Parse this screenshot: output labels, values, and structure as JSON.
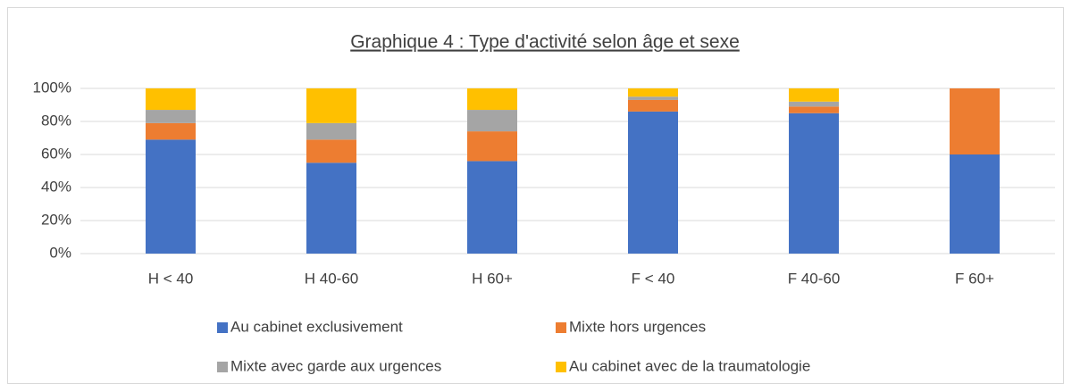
{
  "chart_data": {
    "type": "stacked_bar",
    "title": "Graphique 4 : Type d'activité selon âge et sexe",
    "categories": [
      "H < 40",
      "H 40-60",
      "H 60+",
      "F < 40",
      "F 40-60",
      "F 60+"
    ],
    "series": [
      {
        "name": "Au cabinet exclusivement",
        "color": "#4472c4",
        "values": [
          69,
          55,
          56,
          86,
          85,
          60
        ]
      },
      {
        "name": "Mixte hors urgences",
        "color": "#ed7d31",
        "values": [
          10,
          14,
          18,
          7,
          4,
          40
        ]
      },
      {
        "name": "Mixte avec garde aux urgences",
        "color": "#a5a5a5",
        "values": [
          8,
          10,
          13,
          2,
          3,
          0
        ]
      },
      {
        "name": "Au cabinet avec de la traumatologie",
        "color": "#ffc000",
        "values": [
          13,
          21,
          13,
          5,
          8,
          0
        ]
      }
    ],
    "ylim": [
      0,
      100
    ],
    "yticks": [
      {
        "value": 0,
        "label": "0%"
      },
      {
        "value": 20,
        "label": "20%"
      },
      {
        "value": 40,
        "label": "40%"
      },
      {
        "value": 60,
        "label": "60%"
      },
      {
        "value": 80,
        "label": "80%"
      },
      {
        "value": 100,
        "label": "100%"
      }
    ],
    "grid": true
  }
}
